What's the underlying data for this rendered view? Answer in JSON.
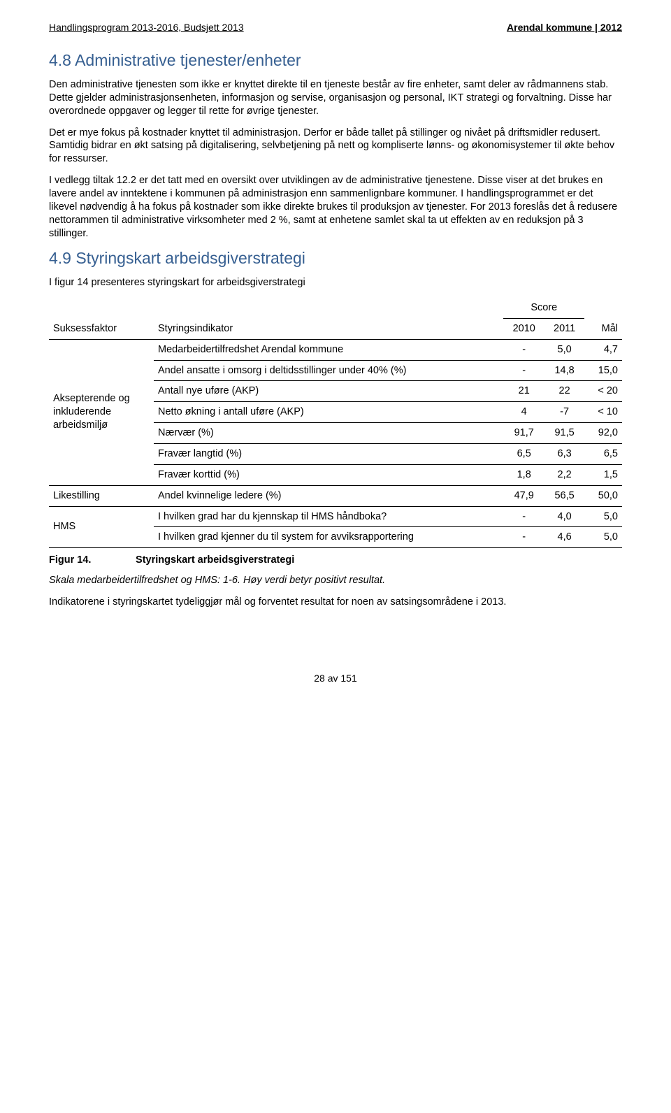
{
  "header": {
    "left": "Handlingsprogram 2013-2016, Budsjett 2013",
    "right": "Arendal kommune | 2012"
  },
  "section48": {
    "title": "4.8 Administrative tjenester/enheter",
    "p1": "Den administrative tjenesten som ikke er knyttet direkte til en tjeneste består av fire enheter, samt deler av rådmannens stab. Dette gjelder administrasjonsenheten, informasjon og servise, organisasjon og personal, IKT strategi og forvaltning. Disse har overordnede oppgaver og legger til rette for øvrige tjenester.",
    "p2": "Det er mye fokus på kostnader knyttet til administrasjon. Derfor er både tallet på stillinger og nivået på driftsmidler  redusert. Samtidig bidrar en økt satsing på digitalisering, selvbetjening på nett og kompliserte lønns- og økonomisystemer til økte behov for ressurser.",
    "p3": "I vedlegg tiltak 12.2 er det tatt med en oversikt over utviklingen av de administrative tjenestene. Disse viser at det brukes en lavere andel av inntektene i kommunen på administrasjon enn sammenlignbare kommuner. I handlingsprogrammet er det likevel nødvendig å ha fokus på kostnader som ikke direkte brukes til produksjon av tjenester. For 2013 foreslås det å redusere nettorammen til administrative virksomheter med 2 %, samt at enhetene samlet skal ta ut effekten av en reduksjon på 3 stillinger."
  },
  "section49": {
    "title": "4.9 Styringskart arbeidsgiverstrategi",
    "intro": "I figur 14 presenteres styringskart for arbeidsgiverstrategi",
    "headers": {
      "suksessfaktor": "Suksessfaktor",
      "styringsindikator": "Styringsindikator",
      "score": "Score",
      "y2010": "2010",
      "y2011": "2011",
      "maal": "Mål"
    },
    "groups": [
      {
        "factor": "Aksepterende og inkluderende arbeidsmiljø",
        "rows": [
          {
            "indikator": "Medarbeidertilfredshet Arendal kommune",
            "v2010": "-",
            "v2011": "5,0",
            "maal": "4,7"
          },
          {
            "indikator": "Andel ansatte i omsorg i deltidsstillinger under 40% (%)",
            "v2010": "-",
            "v2011": "14,8",
            "maal": "15,0"
          },
          {
            "indikator": "Antall nye uføre (AKP)",
            "v2010": "21",
            "v2011": "22",
            "maal": "< 20"
          },
          {
            "indikator": "Netto økning i antall uføre (AKP)",
            "v2010": "4",
            "v2011": "-7",
            "maal": "< 10"
          },
          {
            "indikator": "Nærvær (%)",
            "v2010": "91,7",
            "v2011": "91,5",
            "maal": "92,0"
          },
          {
            "indikator": "Fravær langtid (%)",
            "v2010": "6,5",
            "v2011": "6,3",
            "maal": "6,5"
          },
          {
            "indikator": "Fravær korttid (%)",
            "v2010": "1,8",
            "v2011": "2,2",
            "maal": "1,5"
          }
        ]
      },
      {
        "factor": "Likestilling",
        "rows": [
          {
            "indikator": "Andel kvinnelige ledere (%)",
            "v2010": "47,9",
            "v2011": "56,5",
            "maal": "50,0"
          }
        ]
      },
      {
        "factor": "HMS",
        "rows": [
          {
            "indikator": "I hvilken grad har du kjennskap til HMS håndboka?",
            "v2010": "-",
            "v2011": "4,0",
            "maal": "5,0"
          },
          {
            "indikator": "I hvilken grad kjenner du til system for avviksrapportering",
            "v2010": "-",
            "v2011": "4,6",
            "maal": "5,0"
          }
        ]
      }
    ],
    "figure": {
      "label": "Figur 14.",
      "title": "Styringskart arbeidsgiverstrategi"
    },
    "footnote": "Skala medarbeidertilfredshet og HMS: 1-6. Høy verdi betyr positivt resultat.",
    "closing": "Indikatorene i styringskartet tydeliggjør mål og forventet resultat for noen av satsingsområdene i 2013."
  },
  "pagenum": "28 av 151"
}
